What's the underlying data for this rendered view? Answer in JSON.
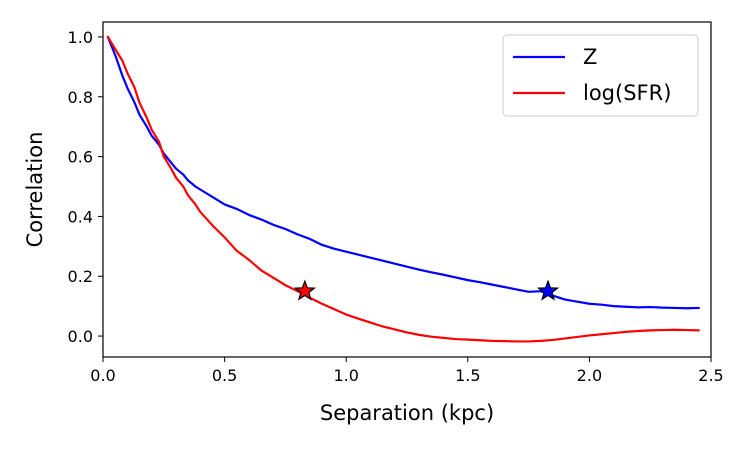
{
  "chart_data": {
    "type": "line",
    "xlabel": "Separation (kpc)",
    "ylabel": "Correlation",
    "xlim": [
      0.0,
      2.5
    ],
    "ylim": [
      -0.07,
      1.05
    ],
    "xticks": [
      0.0,
      0.5,
      1.0,
      1.5,
      2.0,
      2.5
    ],
    "xtick_labels": [
      "0.0",
      "0.5",
      "1.0",
      "1.5",
      "2.0",
      "2.5"
    ],
    "yticks": [
      0.0,
      0.2,
      0.4,
      0.6,
      0.8,
      1.0
    ],
    "ytick_labels": [
      "0.0",
      "0.2",
      "0.4",
      "0.6",
      "0.8",
      "1.0"
    ],
    "grid": false,
    "legend_position": "top-right",
    "series": [
      {
        "name": "Z",
        "color": "#0000ff",
        "x": [
          0.02,
          0.05,
          0.08,
          0.1,
          0.13,
          0.15,
          0.18,
          0.2,
          0.23,
          0.25,
          0.28,
          0.3,
          0.33,
          0.35,
          0.38,
          0.4,
          0.45,
          0.5,
          0.55,
          0.6,
          0.65,
          0.7,
          0.75,
          0.8,
          0.85,
          0.9,
          0.95,
          1.0,
          1.05,
          1.1,
          1.15,
          1.2,
          1.25,
          1.3,
          1.35,
          1.4,
          1.45,
          1.5,
          1.55,
          1.6,
          1.65,
          1.7,
          1.75,
          1.8,
          1.85,
          1.9,
          1.95,
          2.0,
          2.05,
          2.1,
          2.15,
          2.2,
          2.25,
          2.3,
          2.35,
          2.4,
          2.45
        ],
        "y": [
          1.0,
          0.94,
          0.87,
          0.83,
          0.78,
          0.74,
          0.7,
          0.67,
          0.64,
          0.61,
          0.58,
          0.56,
          0.54,
          0.52,
          0.5,
          0.49,
          0.465,
          0.44,
          0.425,
          0.405,
          0.39,
          0.372,
          0.358,
          0.34,
          0.325,
          0.305,
          0.292,
          0.282,
          0.272,
          0.262,
          0.252,
          0.242,
          0.232,
          0.222,
          0.213,
          0.205,
          0.196,
          0.187,
          0.18,
          0.172,
          0.164,
          0.156,
          0.148,
          0.15,
          0.135,
          0.122,
          0.115,
          0.108,
          0.105,
          0.1,
          0.098,
          0.096,
          0.097,
          0.095,
          0.094,
          0.093,
          0.094
        ]
      },
      {
        "name": "log(SFR)",
        "color": "#ff0000",
        "x": [
          0.02,
          0.05,
          0.08,
          0.1,
          0.13,
          0.15,
          0.18,
          0.2,
          0.23,
          0.25,
          0.28,
          0.3,
          0.33,
          0.35,
          0.38,
          0.4,
          0.45,
          0.5,
          0.55,
          0.6,
          0.65,
          0.7,
          0.75,
          0.8,
          0.85,
          0.9,
          0.95,
          1.0,
          1.05,
          1.1,
          1.15,
          1.2,
          1.25,
          1.3,
          1.35,
          1.4,
          1.45,
          1.5,
          1.55,
          1.6,
          1.65,
          1.7,
          1.75,
          1.8,
          1.85,
          1.9,
          1.95,
          2.0,
          2.05,
          2.1,
          2.15,
          2.2,
          2.25,
          2.3,
          2.35,
          2.4,
          2.45
        ],
        "y": [
          1.0,
          0.96,
          0.92,
          0.88,
          0.83,
          0.78,
          0.73,
          0.69,
          0.65,
          0.6,
          0.56,
          0.53,
          0.5,
          0.47,
          0.44,
          0.415,
          0.37,
          0.33,
          0.285,
          0.255,
          0.22,
          0.195,
          0.17,
          0.15,
          0.128,
          0.108,
          0.09,
          0.072,
          0.058,
          0.045,
          0.032,
          0.022,
          0.012,
          0.004,
          -0.002,
          -0.006,
          -0.01,
          -0.012,
          -0.014,
          -0.016,
          -0.017,
          -0.018,
          -0.018,
          -0.016,
          -0.013,
          -0.008,
          -0.003,
          0.002,
          0.006,
          0.01,
          0.014,
          0.017,
          0.019,
          0.02,
          0.021,
          0.02,
          0.019
        ]
      }
    ],
    "markers": [
      {
        "series": "log(SFR)",
        "shape": "star",
        "x": 0.83,
        "y": 0.15,
        "color": "#ff0000"
      },
      {
        "series": "Z",
        "shape": "star",
        "x": 1.83,
        "y": 0.15,
        "color": "#0000ff"
      }
    ]
  }
}
